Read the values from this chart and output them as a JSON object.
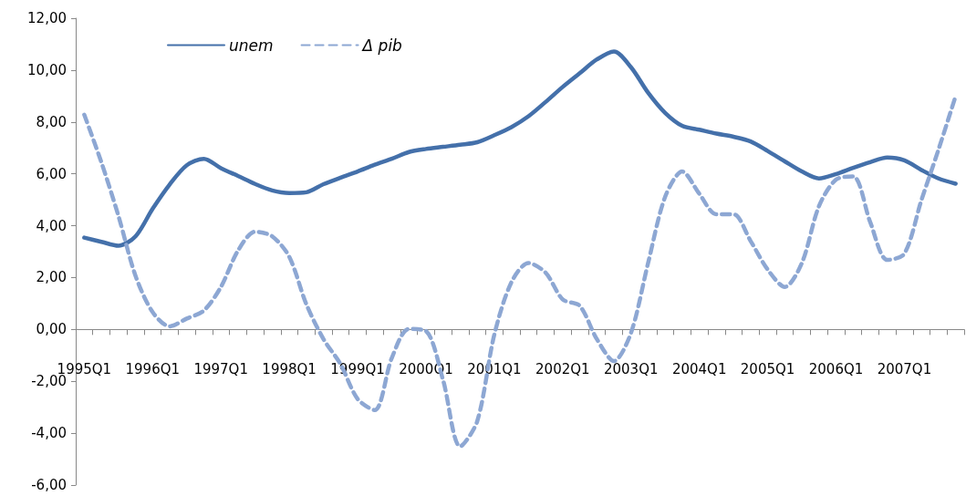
{
  "chart_data": {
    "type": "line",
    "categories": [
      "1995Q1",
      null,
      null,
      null,
      "1996Q1",
      null,
      null,
      null,
      "1997Q1",
      null,
      null,
      null,
      "1998Q1",
      null,
      null,
      null,
      "1999Q1",
      null,
      null,
      null,
      "2000Q1",
      null,
      null,
      null,
      "2001Q1",
      null,
      null,
      null,
      "2002Q1",
      null,
      null,
      null,
      "2003Q1",
      null,
      null,
      null,
      "2004Q1",
      null,
      null,
      null,
      "2005Q1",
      null,
      null,
      null,
      "2006Q1",
      null,
      null,
      null,
      "2007Q1",
      null,
      null,
      null
    ],
    "series": [
      {
        "name": "unem",
        "color": "#4470aa",
        "line_style": "solid",
        "values": [
          3.54,
          3.38,
          3.23,
          3.59,
          4.65,
          5.59,
          6.33,
          6.58,
          6.22,
          5.92,
          5.61,
          5.36,
          5.26,
          5.29,
          5.6,
          5.85,
          6.09,
          6.35,
          6.58,
          6.84,
          6.96,
          7.04,
          7.12,
          7.22,
          7.49,
          7.8,
          8.22,
          8.77,
          9.35,
          9.88,
          10.41,
          10.72,
          10.11,
          9.13,
          8.35,
          7.85,
          7.7,
          7.55,
          7.43,
          7.25,
          6.88,
          6.48,
          6.09,
          5.82,
          5.99,
          6.23,
          6.45,
          6.63,
          6.52,
          6.15,
          5.82,
          5.62
        ]
      },
      {
        "name": "Δ pib",
        "color": "#8da7d3",
        "line_style": "dashed",
        "values": [
          8.28,
          6.45,
          4.38,
          2.07,
          0.67,
          0.12,
          0.42,
          0.73,
          1.64,
          3.04,
          3.77,
          3.59,
          2.8,
          0.97,
          -0.37,
          -1.34,
          -2.68,
          -3.11,
          -1.1,
          0.02,
          -0.06,
          -1.95,
          -4.51,
          -3.54,
          -0.2,
          1.82,
          2.56,
          2.19,
          1.16,
          0.91,
          -0.37,
          -1.22,
          -0.13,
          2.56,
          5.12,
          6.09,
          5.23,
          4.44,
          4.44,
          3.41,
          2.31,
          1.64,
          2.56,
          4.75,
          5.78,
          5.9,
          4.14,
          2.68,
          2.92,
          4.99,
          6.94,
          9.0
        ]
      }
    ],
    "ylim": [
      -6,
      12
    ],
    "yticks": [
      {
        "value": -6,
        "label": "-6,00"
      },
      {
        "value": -4,
        "label": "-4,00"
      },
      {
        "value": -2,
        "label": "-2,00"
      },
      {
        "value": 0,
        "label": "0,00"
      },
      {
        "value": 2,
        "label": "2,00"
      },
      {
        "value": 4,
        "label": "4,00"
      },
      {
        "value": 6,
        "label": "6,00"
      },
      {
        "value": 8,
        "label": "8,00"
      },
      {
        "value": 10,
        "label": "10,00"
      },
      {
        "value": 12,
        "label": "12,00"
      }
    ],
    "legend": "top left",
    "marker": "none"
  }
}
